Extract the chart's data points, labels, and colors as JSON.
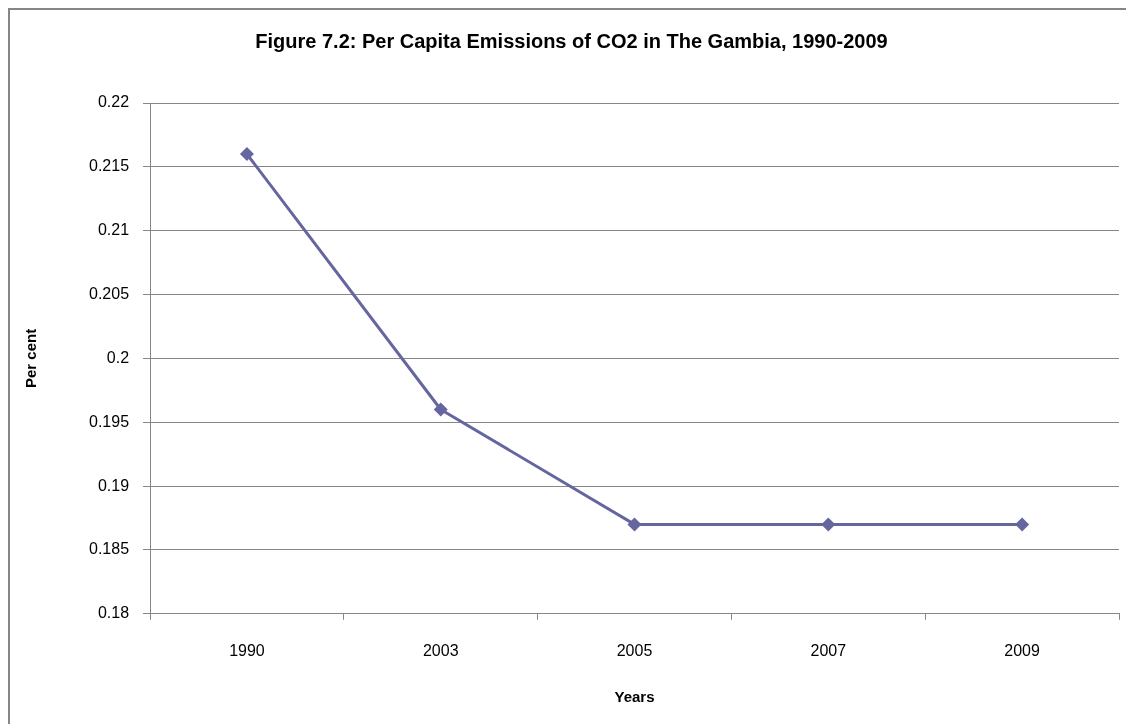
{
  "chart_data": {
    "type": "line",
    "title": "Figure 7.2: Per Capita Emissions of CO2 in The Gambia, 1990-2009",
    "xlabel": "Years",
    "ylabel": "Per cent",
    "categories": [
      "1990",
      "2003",
      "2005",
      "2007",
      "2009"
    ],
    "series": [
      {
        "color": "#65659f",
        "values": [
          0.216,
          0.196,
          0.187,
          0.187,
          0.187
        ]
      }
    ],
    "ylim": [
      0.18,
      0.22
    ],
    "yticks": [
      0.18,
      0.185,
      0.19,
      0.195,
      0.2,
      0.205,
      0.21,
      0.215,
      0.22
    ],
    "grid": "y",
    "marker": "diamond",
    "line_style": "solid"
  }
}
